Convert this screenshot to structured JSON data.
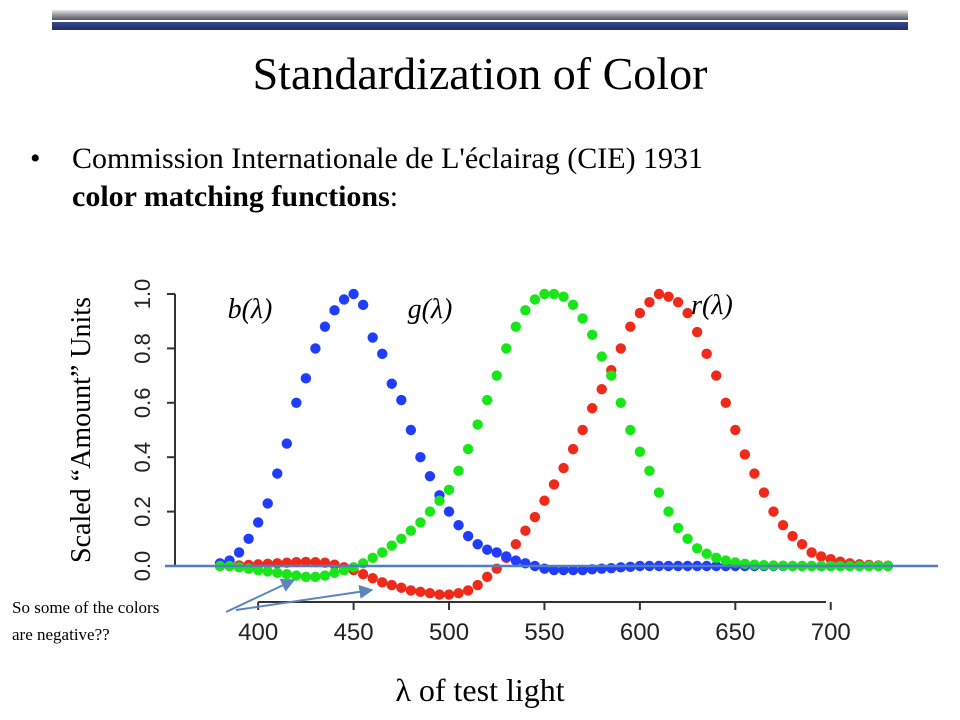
{
  "slide": {
    "title": "Standardization of Color",
    "bullet_text": "Commission Internationale de L'éclairag (CIE) 1931",
    "bullet_bold": "color matching functions",
    "bullet_tail": ":",
    "annotation_line1": "So some of the colors",
    "annotation_line2": "are negative??"
  },
  "colors": {
    "blue_series": "#1f3cff",
    "green_series": "#19e619",
    "red_series": "#f02a1a",
    "reference_line": "#4f7fbf",
    "arrow": "#5b84c0",
    "axis": "#333333"
  },
  "chart_data": {
    "type": "scatter",
    "title": "",
    "xlabel": "λ of test light",
    "ylabel": "Scaled “Amount” Units",
    "xlim": [
      380,
      735
    ],
    "ylim": [
      -0.15,
      1.0
    ],
    "xticks": [
      400,
      450,
      500,
      550,
      600,
      650,
      700
    ],
    "yticks": [
      0.0,
      0.2,
      0.4,
      0.6,
      0.8,
      1.0
    ],
    "xtick_labels": [
      "400",
      "450",
      "500",
      "550",
      "600",
      "650",
      "700"
    ],
    "ytick_labels": [
      "0.0",
      "0.2",
      "0.4",
      "0.6",
      "0.8",
      "1.0"
    ],
    "grid": false,
    "reference_line_y": 0.0,
    "x": [
      380,
      385,
      390,
      395,
      400,
      405,
      410,
      415,
      420,
      425,
      430,
      435,
      440,
      445,
      450,
      455,
      460,
      465,
      470,
      475,
      480,
      485,
      490,
      495,
      500,
      505,
      510,
      515,
      520,
      525,
      530,
      535,
      540,
      545,
      550,
      555,
      560,
      565,
      570,
      575,
      580,
      585,
      590,
      595,
      600,
      605,
      610,
      615,
      620,
      625,
      630,
      635,
      640,
      645,
      650,
      655,
      660,
      665,
      670,
      675,
      680,
      685,
      690,
      695,
      700,
      705,
      710,
      715,
      720,
      725,
      730
    ],
    "series": [
      {
        "name": "b(λ)",
        "color_key": "blue_series",
        "values": [
          0.01,
          0.02,
          0.05,
          0.1,
          0.16,
          0.23,
          0.34,
          0.45,
          0.6,
          0.69,
          0.8,
          0.88,
          0.94,
          0.98,
          1.0,
          0.96,
          0.84,
          0.78,
          0.67,
          0.61,
          0.5,
          0.4,
          0.33,
          0.26,
          0.2,
          0.15,
          0.11,
          0.08,
          0.06,
          0.05,
          0.035,
          0.02,
          0.01,
          0.0,
          -0.01,
          -0.015,
          -0.015,
          -0.015,
          -0.015,
          -0.012,
          -0.01,
          -0.008,
          -0.005,
          -0.003,
          0.0,
          0.0,
          0.0,
          0.0,
          0.0,
          0.0,
          0.0,
          0.0,
          0.0,
          0.0,
          0.0,
          0.0,
          0.0,
          0.0,
          0.0,
          0.0,
          0.0,
          0.0,
          0.0,
          0.0,
          0.0,
          0.0,
          0.0,
          0.0,
          0.0,
          0.0,
          0.0
        ]
      },
      {
        "name": "g(λ)",
        "color_key": "green_series",
        "values": [
          0.0,
          0.0,
          -0.005,
          -0.01,
          -0.015,
          -0.02,
          -0.025,
          -0.03,
          -0.035,
          -0.04,
          -0.04,
          -0.035,
          -0.025,
          -0.015,
          -0.005,
          0.01,
          0.03,
          0.05,
          0.075,
          0.1,
          0.13,
          0.16,
          0.2,
          0.24,
          0.28,
          0.35,
          0.43,
          0.52,
          0.61,
          0.7,
          0.8,
          0.88,
          0.94,
          0.98,
          1.0,
          1.0,
          0.99,
          0.96,
          0.91,
          0.85,
          0.77,
          0.7,
          0.6,
          0.5,
          0.42,
          0.35,
          0.27,
          0.2,
          0.14,
          0.1,
          0.065,
          0.045,
          0.03,
          0.02,
          0.013,
          0.008,
          0.005,
          0.003,
          0.002,
          0.001,
          0.0,
          0.0,
          0.0,
          0.0,
          0.0,
          0.0,
          0.0,
          0.0,
          0.0,
          0.0,
          0.0
        ]
      },
      {
        "name": "r(λ)",
        "color_key": "red_series",
        "values": [
          0.0,
          0.0,
          0.002,
          0.004,
          0.006,
          0.008,
          0.01,
          0.012,
          0.014,
          0.015,
          0.014,
          0.012,
          0.005,
          -0.005,
          -0.015,
          -0.03,
          -0.045,
          -0.06,
          -0.07,
          -0.08,
          -0.09,
          -0.095,
          -0.1,
          -0.105,
          -0.105,
          -0.1,
          -0.09,
          -0.07,
          -0.04,
          -0.01,
          0.03,
          0.08,
          0.13,
          0.18,
          0.24,
          0.3,
          0.36,
          0.43,
          0.5,
          0.58,
          0.65,
          0.72,
          0.8,
          0.88,
          0.93,
          0.97,
          1.0,
          0.99,
          0.97,
          0.93,
          0.86,
          0.78,
          0.7,
          0.6,
          0.5,
          0.41,
          0.34,
          0.27,
          0.2,
          0.15,
          0.11,
          0.08,
          0.05,
          0.035,
          0.025,
          0.016,
          0.01,
          0.006,
          0.004,
          0.002,
          0.001
        ]
      }
    ],
    "curve_labels": [
      {
        "text": "b(λ)",
        "series": "b(λ)"
      },
      {
        "text": "g(λ)",
        "series": "g(λ)"
      },
      {
        "text": "r(λ)",
        "series": "r(λ)"
      }
    ]
  }
}
